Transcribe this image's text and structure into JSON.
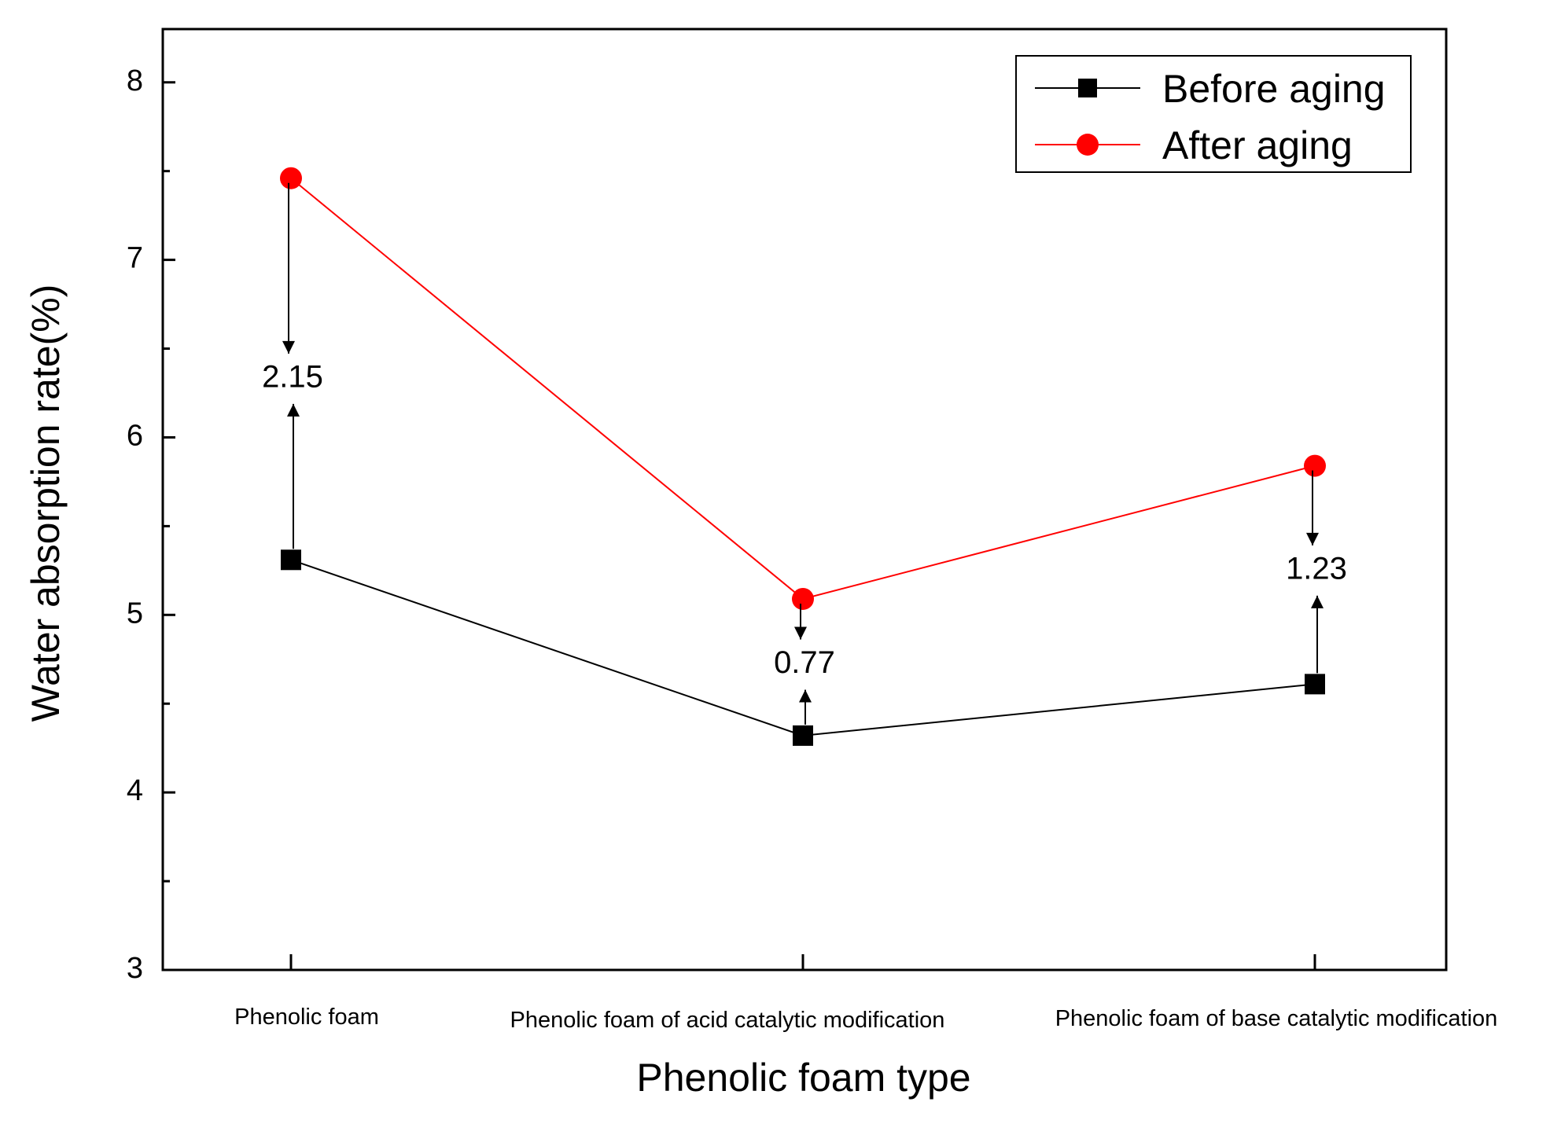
{
  "chart_data": {
    "type": "line",
    "title": "",
    "xlabel": "Phenolic foam type",
    "ylabel": "Water absorption rate(%)",
    "ylim": [
      3,
      8.3
    ],
    "yticks": [
      3,
      4,
      5,
      6,
      7,
      8
    ],
    "grid": false,
    "legend_position": "top-right",
    "categories": [
      "Phenolic foam",
      "Phenolic foam of acid catalytic modification",
      "Phenolic foam of base catalytic modification"
    ],
    "series": [
      {
        "name": "Before aging",
        "marker": "square",
        "color": "#000000",
        "values": [
          5.31,
          4.32,
          4.61
        ]
      },
      {
        "name": "After aging",
        "marker": "circle",
        "color": "#ff0000",
        "values": [
          7.46,
          5.09,
          5.84
        ]
      }
    ],
    "annotations": [
      {
        "text": "2.15",
        "category_index": 0,
        "label_value": 6.33
      },
      {
        "text": "0.77",
        "category_index": 1,
        "label_value": 4.72
      },
      {
        "text": "1.23",
        "category_index": 2,
        "label_value": 5.25
      }
    ]
  }
}
